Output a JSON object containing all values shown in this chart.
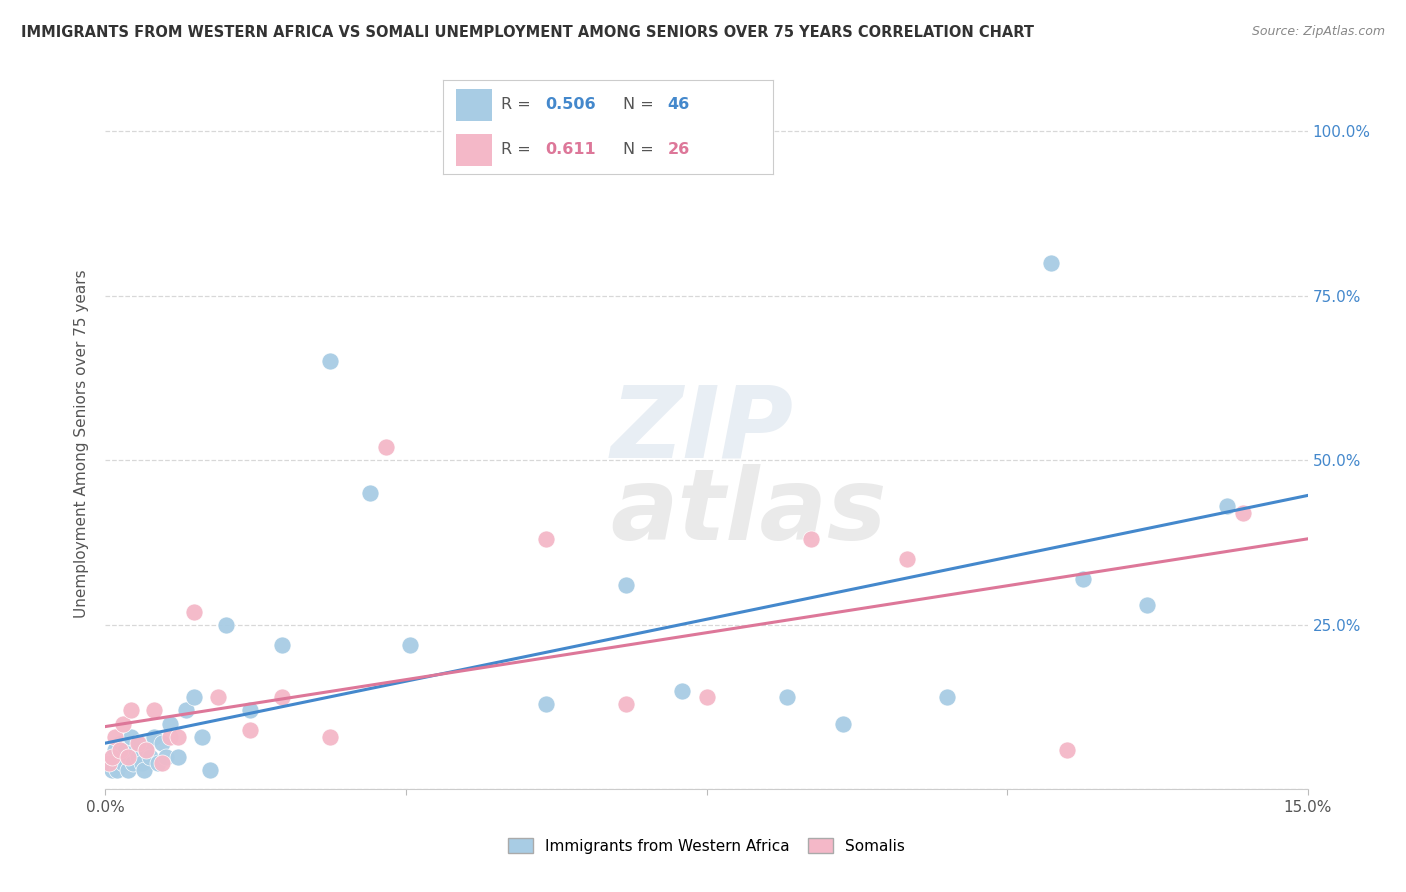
{
  "title": "IMMIGRANTS FROM WESTERN AFRICA VS SOMALI UNEMPLOYMENT AMONG SENIORS OVER 75 YEARS CORRELATION CHART",
  "source": "Source: ZipAtlas.com",
  "ylabel": "Unemployment Among Seniors over 75 years",
  "legend_label1": "Immigrants from Western Africa",
  "legend_label2": "Somalis",
  "R1": "0.506",
  "N1": "46",
  "R2": "0.611",
  "N2": "26",
  "color_blue": "#a8cce4",
  "color_pink": "#f4b8c8",
  "color_blue_line": "#4488cc",
  "color_pink_line": "#dd7799",
  "color_blue_text": "#4488cc",
  "color_pink_text": "#dd7799",
  "color_right_axis": "#4488cc",
  "grid_color": "#d8d8d8",
  "watermark_color": "#e8eef4",
  "watermark_color2": "#eaeaea",
  "blue_x": [
    0.05,
    0.08,
    0.1,
    0.12,
    0.15,
    0.18,
    0.2,
    0.22,
    0.25,
    0.28,
    0.3,
    0.32,
    0.35,
    0.38,
    0.4,
    0.42,
    0.45,
    0.48,
    0.5,
    0.55,
    0.6,
    0.65,
    0.7,
    0.75,
    0.8,
    0.9,
    1.0,
    1.1,
    1.2,
    1.3,
    1.5,
    1.8,
    2.2,
    2.8,
    3.3,
    3.8,
    5.5,
    6.5,
    7.2,
    8.5,
    9.2,
    10.5,
    11.8,
    12.2,
    13.0,
    14.0
  ],
  "blue_y": [
    4,
    3,
    5,
    6,
    3,
    5,
    7,
    4,
    6,
    3,
    5,
    8,
    4,
    6,
    5,
    7,
    4,
    3,
    6,
    5,
    8,
    4,
    7,
    5,
    10,
    5,
    12,
    14,
    8,
    3,
    25,
    12,
    22,
    65,
    45,
    22,
    13,
    31,
    15,
    14,
    10,
    14,
    80,
    32,
    28,
    43
  ],
  "pink_x": [
    0.05,
    0.08,
    0.12,
    0.18,
    0.22,
    0.28,
    0.32,
    0.4,
    0.5,
    0.6,
    0.7,
    0.8,
    0.9,
    1.1,
    1.4,
    1.8,
    2.2,
    2.8,
    3.5,
    5.5,
    6.5,
    7.5,
    8.8,
    10.0,
    12.0,
    14.2
  ],
  "pink_y": [
    4,
    5,
    8,
    6,
    10,
    5,
    12,
    7,
    6,
    12,
    4,
    8,
    8,
    27,
    14,
    9,
    14,
    8,
    52,
    38,
    13,
    14,
    38,
    35,
    6,
    42
  ],
  "xlim": [
    0,
    15
  ],
  "ylim": [
    0,
    105
  ],
  "xticks": [
    0,
    3.75,
    7.5,
    11.25,
    15
  ],
  "xtick_labels": [
    "0.0%",
    "",
    "",
    "",
    "15.0%"
  ],
  "yticks_right": [
    25,
    50,
    75,
    100
  ],
  "ytick_labels_right": [
    "25.0%",
    "50.0%",
    "75.0%",
    "100.0%"
  ]
}
